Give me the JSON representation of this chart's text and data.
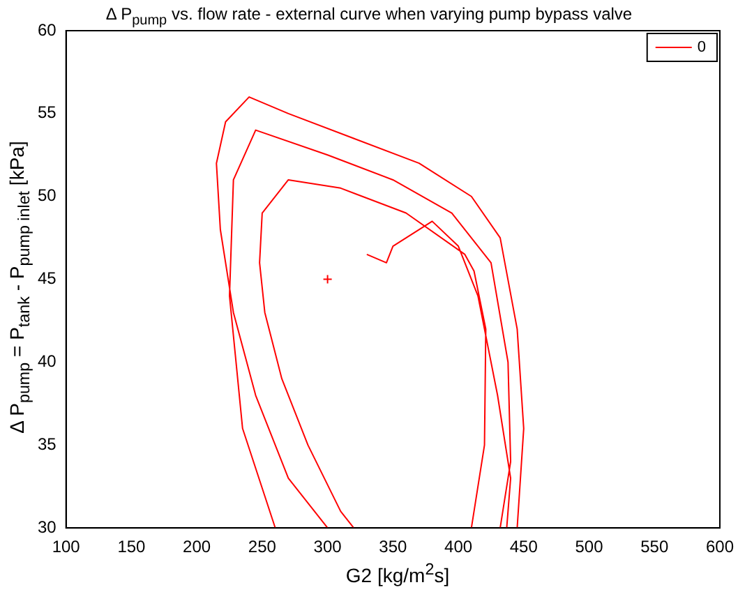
{
  "chart_data": {
    "type": "line",
    "title": "Δ P$_{pump}$ vs. flow rate - external curve when varying pump bypass valve",
    "xlabel": "G2 [kg/m$^{2}$s]",
    "ylabel": "Δ P$_{pump}$ = P$_{tank}$ - P$_{pump inlet}$ [kPa]",
    "xlim": [
      100,
      600
    ],
    "xticks": [
      100,
      150,
      200,
      250,
      300,
      350,
      400,
      450,
      500,
      550,
      600
    ],
    "ylim": [
      30,
      60
    ],
    "yticks": [
      30,
      35,
      40,
      45,
      50,
      55,
      60
    ],
    "grid": false,
    "legend": "top right",
    "line_style": "solid",
    "series": [
      {
        "name": "0",
        "color": "#ff0000",
        "marker": "none",
        "x": [
          300,
          270,
          245,
          228,
          218,
          215,
          222,
          240,
          270,
          320,
          370,
          410,
          432,
          445,
          450,
          445,
          null,
          410,
          420,
          421,
          412,
          405,
          360,
          310,
          270,
          250,
          248,
          252,
          265,
          285,
          310,
          320,
          null,
          330,
          345,
          350,
          380,
          400,
          415,
          430,
          440,
          437,
          null,
          260,
          235,
          225,
          228,
          245,
          300,
          350,
          395,
          425,
          438,
          440,
          432
        ],
        "values": [
          30,
          33,
          38,
          43,
          48,
          52,
          54.5,
          56,
          55,
          53.5,
          52,
          50,
          47.5,
          42,
          36,
          30,
          null,
          30,
          35,
          42,
          45.5,
          46.5,
          49,
          50.5,
          51,
          49,
          46,
          43,
          39,
          35,
          31,
          30,
          null,
          46.5,
          46,
          47,
          48.5,
          47,
          44,
          38,
          33,
          30,
          null,
          30,
          36,
          44,
          51,
          54,
          52.5,
          51,
          49,
          46,
          40,
          34,
          30
        ]
      },
      {
        "color": "#ff0000",
        "type": "scatter",
        "marker": "cross",
        "x": [
          300
        ],
        "values": [
          45
        ]
      }
    ]
  }
}
